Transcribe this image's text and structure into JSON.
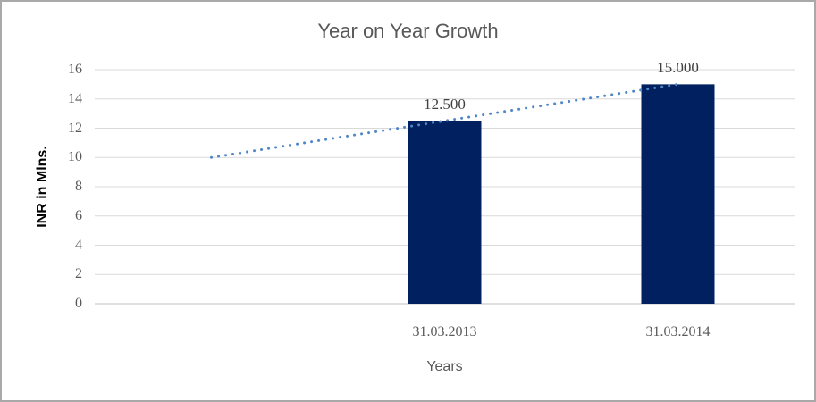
{
  "chart_data": {
    "type": "bar",
    "title": "Year on Year Growth",
    "xlabel": "Years",
    "ylabel": "INR in Mlns.",
    "ylim": [
      0,
      16
    ],
    "ytick_step": 2,
    "grid": true,
    "legend": "none",
    "categories": [
      "",
      "31.03.2013",
      "31.03.2014"
    ],
    "series": [
      {
        "name": "INR in Mlns.",
        "type": "bar",
        "color": "#002060",
        "values": [
          null,
          12.5,
          15
        ],
        "data_labels": [
          null,
          "12.500",
          "15.000"
        ]
      },
      {
        "name": "trendline",
        "type": "dotted-line",
        "color": "#4e86c6",
        "values": [
          10,
          12.5,
          15
        ]
      }
    ]
  },
  "colors": {
    "gridline": "#d9d9d9",
    "axis_line": "#bfbfbf",
    "tick_text": "#595959",
    "title_text": "#595959",
    "data_label_text": "#404040",
    "frame_border": "#a9a9a9",
    "background": "#ffffff"
  }
}
